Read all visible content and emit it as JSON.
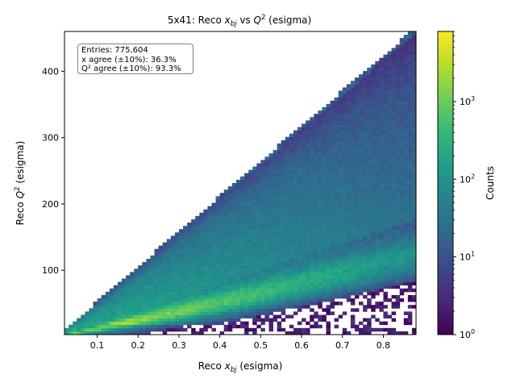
{
  "chart_data": {
    "type": "heatmap",
    "title_prefix": "5x41: Reco ",
    "title_x": "x",
    "title_x_sub": "bj",
    "title_mid": " vs ",
    "title_q": "Q",
    "title_q_sup": "2",
    "title_suffix": " (esigma)",
    "xlabel_prefix": "Reco ",
    "xlabel_x": "x",
    "xlabel_sub": "bj",
    "xlabel_suffix": " (esigma)",
    "ylabel_prefix": "Reco ",
    "ylabel_q": "Q",
    "ylabel_sup": "2",
    "ylabel_suffix": " (esigma)",
    "xlim": [
      0.02,
      0.88
    ],
    "ylim": [
      3,
      460
    ],
    "xticks": [
      0.1,
      0.2,
      0.3,
      0.4,
      0.5,
      0.6,
      0.7,
      0.8
    ],
    "xtick_labels": [
      "0.1",
      "0.2",
      "0.3",
      "0.4",
      "0.5",
      "0.6",
      "0.7",
      "0.8"
    ],
    "yticks": [
      100,
      200,
      300,
      400
    ],
    "ytick_labels": [
      "100",
      "200",
      "300",
      "400"
    ],
    "colorbar": {
      "label": "Counts",
      "scale": "log",
      "range": [
        1,
        8000
      ],
      "ticks": [
        1,
        10,
        100,
        1000
      ],
      "tick_base": "10",
      "tick_exponents": [
        "0",
        "1",
        "2",
        "3"
      ]
    },
    "colormap": [
      "#440154",
      "#482878",
      "#3e4989",
      "#31688e",
      "#26828e",
      "#1f9e89",
      "#35b779",
      "#6ece58",
      "#b5de2b",
      "#fde725"
    ],
    "bins": {
      "nx": 86,
      "ny": 92
    },
    "band": {
      "upper_slope": 530,
      "lower_slope": 200,
      "peak_slope": 120,
      "description_units": "Q2 per x"
    },
    "stats": [
      "Entries: 775,604",
      "x agree (±10%): 36.3%",
      "Q² agree (±10%): 93.3%"
    ]
  }
}
